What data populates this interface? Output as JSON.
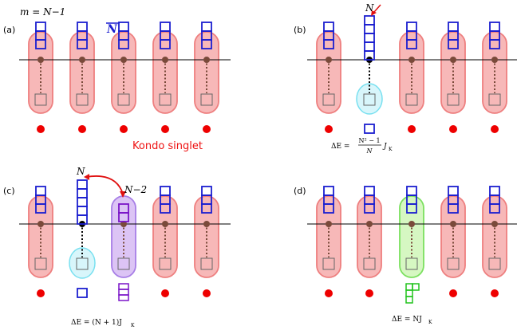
{
  "panels": [
    {
      "id": "a",
      "label": "(a)",
      "top_label": "m = N−1",
      "overline_label": "N",
      "caption": "Kondo singlet",
      "sites": [
        {
          "pill": "red",
          "top_boxes": 3,
          "bottom": "box",
          "below": "dot"
        },
        {
          "pill": "red",
          "top_boxes": 3,
          "bottom": "box",
          "below": "dot"
        },
        {
          "pill": "red",
          "top_boxes": 3,
          "bottom": "box",
          "below": "dot"
        },
        {
          "pill": "red",
          "top_boxes": 3,
          "bottom": "box",
          "below": "dot"
        },
        {
          "pill": "red",
          "top_boxes": 3,
          "bottom": "box",
          "below": "dot"
        }
      ]
    },
    {
      "id": "b",
      "label": "(b)",
      "site_note": "N",
      "energy": {
        "lhs": "ΔE = ",
        "num": "N² − 1",
        "den": "N",
        "rhs": "J",
        "sub": "K"
      },
      "sites": [
        {
          "pill": "red",
          "top_boxes": 3,
          "bottom": "box",
          "below": "dot"
        },
        {
          "pill": "none",
          "top_boxes": 5,
          "bottom": "cyan",
          "below": "box"
        },
        {
          "pill": "red",
          "top_boxes": 3,
          "bottom": "box",
          "below": "dot"
        },
        {
          "pill": "red",
          "top_boxes": 3,
          "bottom": "box",
          "below": "dot"
        },
        {
          "pill": "red",
          "top_boxes": 3,
          "bottom": "box",
          "below": "dot"
        }
      ]
    },
    {
      "id": "c",
      "label": "(c)",
      "site_note": "N",
      "site_note_2": "N−2",
      "energy_text": "ΔE = (N + 1)J",
      "energy_sub": "K",
      "sites": [
        {
          "pill": "red",
          "top_boxes": 3,
          "bottom": "box",
          "below": "dot"
        },
        {
          "pill": "none",
          "top_boxes": 5,
          "bottom": "cyan",
          "below": "box"
        },
        {
          "pill": "purple",
          "top_boxes": 2,
          "bottom": "box",
          "below": "column3"
        },
        {
          "pill": "red",
          "top_boxes": 3,
          "bottom": "box",
          "below": "dot"
        },
        {
          "pill": "red",
          "top_boxes": 3,
          "bottom": "box",
          "below": "dot"
        }
      ]
    },
    {
      "id": "d",
      "label": "(d)",
      "energy_text": "ΔE = NJ",
      "energy_sub": "K",
      "sites": [
        {
          "pill": "red",
          "top_boxes": 3,
          "bottom": "box",
          "below": "dot"
        },
        {
          "pill": "red",
          "top_boxes": 3,
          "bottom": "box",
          "below": "dot"
        },
        {
          "pill": "green",
          "top_boxes": 3,
          "bottom": "box",
          "below": "lshape"
        },
        {
          "pill": "red",
          "top_boxes": 3,
          "bottom": "box",
          "below": "dot"
        },
        {
          "pill": "red",
          "top_boxes": 3,
          "bottom": "box",
          "below": "dot"
        }
      ]
    }
  ],
  "colors": {
    "pill_red_fill": "#f7b8b8",
    "pill_red_stroke": "#ee7f7f",
    "pill_purple_fill": "#dcc4f5",
    "pill_purple_stroke": "#a77ee6",
    "pill_green_fill": "#d6f7c2",
    "pill_green_stroke": "#7be05f",
    "cyan_fill": "#d8f6fb",
    "cyan_stroke": "#78e0f0",
    "tableau_blue": "#1b1fd0",
    "tableau_purple": "#7a14c8",
    "tableau_green": "#22c41e",
    "red_dot": "#ee0000",
    "caption_red": "#ee1111",
    "arrow_red": "#e01010",
    "site_dot": "#7a4a3a",
    "box_gray": "#666666"
  }
}
